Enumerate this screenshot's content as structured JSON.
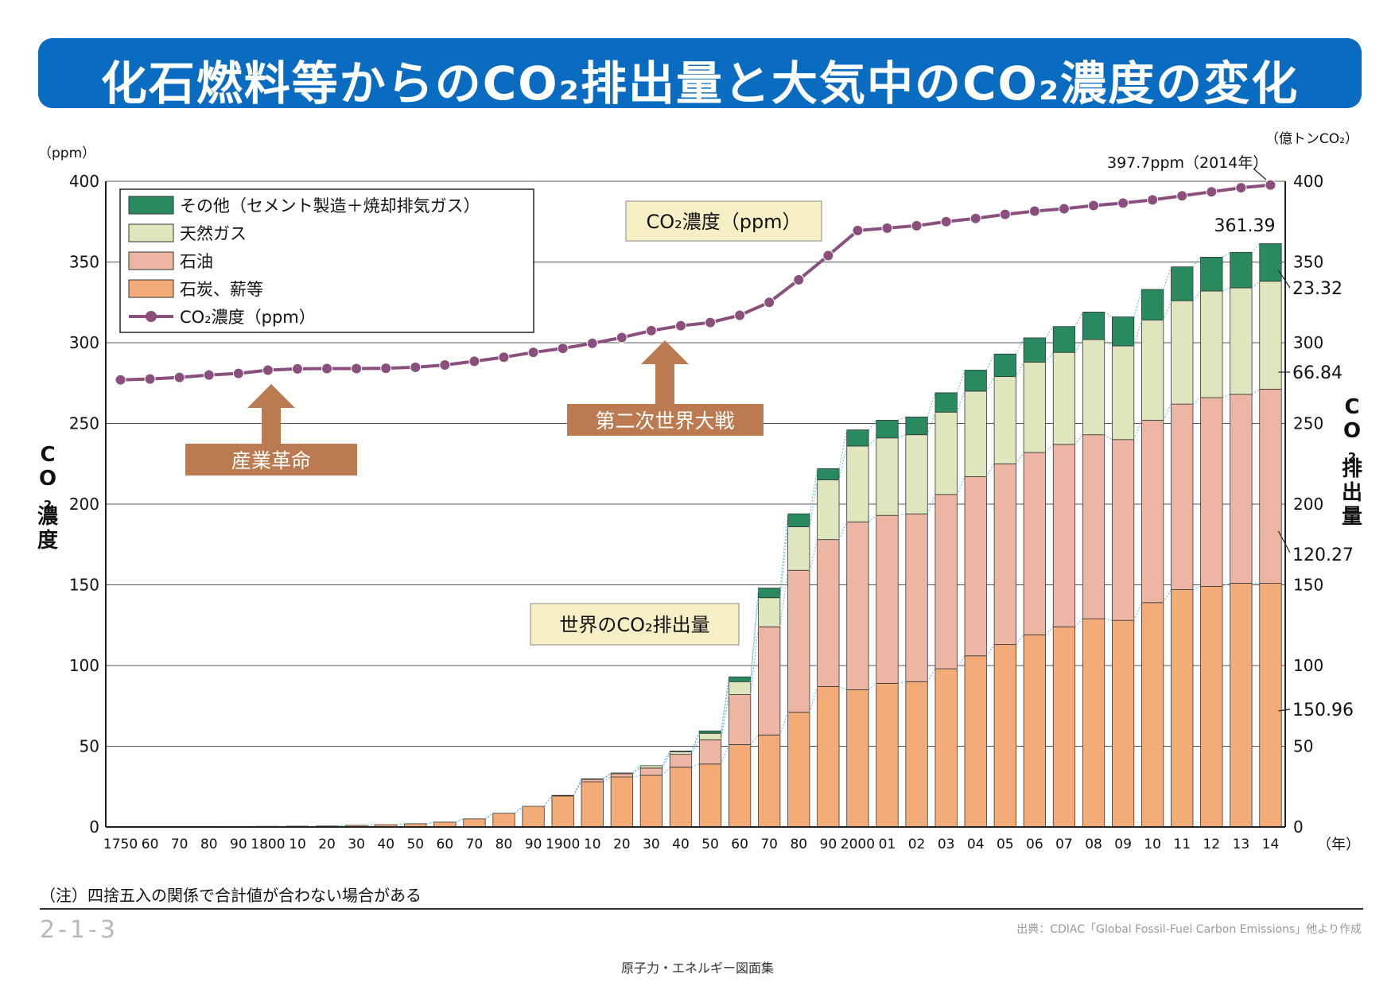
{
  "title": "化石燃料等からのCO₂排出量と大気中のCO₂濃度の変化",
  "note": "（注）四捨五入の関係で合計値が合わない場合がある",
  "page_code": "2-1-3",
  "source": "出典：CDIAC「Global Fossil-Fuel Carbon Emissions」他より作成",
  "footer": "原子力・エネルギー図面集",
  "colors": {
    "title_bg": "#0a6cc1",
    "other": "#2a8a5f",
    "gas": "#dfe6bd",
    "oil": "#edb6a4",
    "coal": "#f3ac78",
    "co2_line": "#8a4f7d",
    "arrow": "#bb7a4f",
    "callout_bg": "#f6efc5"
  },
  "chart_data": {
    "type": "bar+line",
    "left_axis": {
      "unit_label": "（ppm）",
      "title": "CO₂濃度",
      "ticks": [
        0,
        50,
        100,
        150,
        200,
        250,
        300,
        350,
        400
      ],
      "ylim": [
        0,
        400
      ]
    },
    "right_axis": {
      "unit_label": "（億トンCO₂）",
      "title": "CO₂排出量",
      "ticks": [
        0,
        50,
        100,
        150,
        200,
        250,
        300,
        350,
        400
      ],
      "ylim": [
        0,
        400
      ]
    },
    "x_unit": "（年）",
    "categories": [
      "1750",
      "60",
      "70",
      "80",
      "90",
      "1800",
      "10",
      "20",
      "30",
      "40",
      "50",
      "60",
      "70",
      "80",
      "90",
      "1900",
      "10",
      "20",
      "30",
      "40",
      "50",
      "60",
      "70",
      "80",
      "90",
      "2000",
      "01",
      "02",
      "03",
      "04",
      "05",
      "06",
      "07",
      "08",
      "09",
      "10",
      "11",
      "12",
      "13",
      "14"
    ],
    "legend": [
      {
        "key": "other",
        "label": "その他（セメント製造＋焼却排気ガス）"
      },
      {
        "key": "gas",
        "label": "天然ガス"
      },
      {
        "key": "oil",
        "label": "石油"
      },
      {
        "key": "coal",
        "label": "石炭、薪等"
      },
      {
        "key": "co2",
        "label": "CO₂濃度（ppm）"
      }
    ],
    "series": [
      {
        "name": "石炭、薪等",
        "key": "coal",
        "values": [
          0.1,
          0.1,
          0.2,
          0.2,
          0.3,
          0.4,
          0.5,
          0.6,
          1.0,
          1.4,
          2.0,
          3.0,
          5.0,
          8.5,
          12.8,
          19.2,
          28.0,
          31.0,
          32.0,
          37.0,
          39.0,
          51.0,
          57.0,
          71.0,
          87.0,
          85.0,
          89.0,
          90.0,
          98.0,
          106.0,
          113.0,
          119.0,
          124.0,
          129.0,
          128.0,
          139.0,
          147.0,
          149.0,
          151.0,
          150.96
        ]
      },
      {
        "name": "石油",
        "key": "oil",
        "values": [
          0,
          0,
          0,
          0,
          0,
          0,
          0,
          0,
          0,
          0,
          0,
          0,
          0,
          0,
          0,
          0.3,
          1.5,
          2.0,
          4.5,
          8.0,
          15.0,
          31.0,
          67.0,
          88.0,
          91.0,
          104.0,
          104.0,
          104.0,
          108.0,
          111.0,
          112.0,
          113.0,
          113.0,
          114.0,
          112.0,
          113.0,
          115.0,
          117.0,
          117.0,
          120.27
        ]
      },
      {
        "name": "天然ガス",
        "key": "gas",
        "values": [
          0,
          0,
          0,
          0,
          0,
          0,
          0,
          0,
          0,
          0,
          0,
          0,
          0,
          0,
          0,
          0.1,
          0.3,
          0.5,
          1.5,
          1.5,
          4.0,
          8.0,
          18.0,
          27.0,
          37.0,
          47.0,
          48.0,
          49.0,
          51.0,
          53.0,
          54.0,
          56.0,
          57.0,
          59.0,
          58.0,
          62.0,
          64.0,
          66.0,
          66.0,
          66.84
        ]
      },
      {
        "name": "その他（セメント製造＋焼却排気ガス）",
        "key": "other",
        "values": [
          0,
          0,
          0,
          0,
          0,
          0,
          0,
          0,
          0,
          0,
          0,
          0,
          0,
          0,
          0,
          0,
          0,
          0,
          0,
          0.5,
          1.5,
          3.0,
          6.0,
          8.0,
          7.0,
          10.0,
          11.0,
          11.0,
          12.0,
          13.0,
          14.0,
          15.0,
          16.0,
          17.0,
          18.0,
          19.0,
          21.0,
          21.0,
          22.0,
          23.32
        ]
      },
      {
        "name": "CO₂濃度（ppm）",
        "key": "co2",
        "axis": "left",
        "values": [
          277,
          277.5,
          278.5,
          280,
          281,
          283,
          283.8,
          284,
          284,
          284.2,
          284.8,
          286.2,
          288.5,
          291,
          294,
          296.5,
          299.6,
          303.2,
          307.5,
          310.5,
          312.5,
          317,
          325,
          339,
          354,
          369.5,
          371,
          372.5,
          375,
          377,
          379.5,
          381.5,
          383,
          385,
          386.5,
          388.5,
          391,
          393.5,
          396,
          397.7
        ]
      }
    ],
    "annotations": {
      "co2_latest": "397.7ppm（2014年）",
      "total_2014": "361.39",
      "other_2014": "23.32",
      "gas_2014": "66.84",
      "oil_2014": "120.27",
      "coal_2014": "150.96",
      "industrial_revolution": "産業革命",
      "ww2": "第二次世界大戦",
      "co2_callout": "CO₂濃度（ppm）",
      "emissions_callout": "世界のCO₂排出量"
    }
  }
}
